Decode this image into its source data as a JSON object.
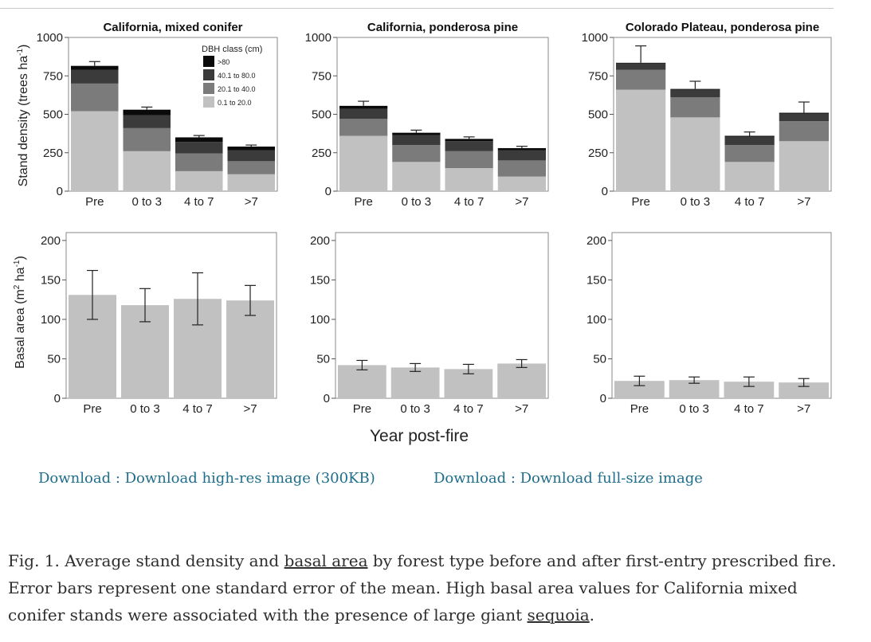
{
  "figure": {
    "xlabel": "Year post-fire",
    "ylabel_top": [
      "Stand density (trees ha",
      "-1",
      ")"
    ],
    "ylabel_bottom": [
      "Basal area (m",
      "2",
      " ha",
      "-1",
      ")"
    ],
    "legend_title": "DBH class (cm)",
    "legend_items": [
      {
        "label": ">80",
        "color": "#0a0a0a"
      },
      {
        "label": "40.1 to 80.0",
        "color": "#3b3b3b"
      },
      {
        "label": "20.1 to 40.0",
        "color": "#7b7b7b"
      },
      {
        "label": "0.1 to 20.0",
        "color": "#c1c1c1"
      }
    ]
  },
  "chart_data": [
    {
      "type": "bar",
      "title": "California, mixed conifer",
      "stacked": true,
      "categories": [
        "Pre",
        "0 to 3",
        "4 to 7",
        ">7"
      ],
      "ylim": [
        0,
        1000
      ],
      "yticks": [
        0,
        250,
        500,
        750,
        1000
      ],
      "series": [
        {
          "name": "0.1 to 20.0",
          "color": "#c1c1c1",
          "values": [
            520,
            260,
            130,
            110
          ]
        },
        {
          "name": "20.1 to 40.0",
          "color": "#7b7b7b",
          "values": [
            180,
            150,
            115,
            85
          ]
        },
        {
          "name": "40.1 to 80.0",
          "color": "#3b3b3b",
          "values": [
            90,
            85,
            75,
            70
          ]
        },
        {
          "name": ">80",
          "color": "#0a0a0a",
          "values": [
            25,
            35,
            30,
            25
          ]
        }
      ],
      "error": [
        28,
        17,
        12,
        10
      ]
    },
    {
      "type": "bar",
      "title": "California, ponderosa pine",
      "stacked": true,
      "categories": [
        "Pre",
        "0 to 3",
        "4 to 7",
        ">7"
      ],
      "ylim": [
        0,
        1000
      ],
      "yticks": [
        0,
        250,
        500,
        750,
        1000
      ],
      "series": [
        {
          "name": "0.1 to 20.0",
          "color": "#c1c1c1",
          "values": [
            360,
            190,
            150,
            95
          ]
        },
        {
          "name": "20.1 to 40.0",
          "color": "#7b7b7b",
          "values": [
            110,
            110,
            110,
            105
          ]
        },
        {
          "name": "40.1 to 80.0",
          "color": "#3b3b3b",
          "values": [
            65,
            65,
            65,
            65
          ]
        },
        {
          "name": ">80",
          "color": "#0a0a0a",
          "values": [
            20,
            15,
            15,
            15
          ]
        }
      ],
      "error": [
        30,
        17,
        13,
        12
      ]
    },
    {
      "type": "bar",
      "title": "Colorado Plateau, ponderosa pine",
      "stacked": true,
      "categories": [
        "Pre",
        "0 to 3",
        "4 to 7",
        ">7"
      ],
      "ylim": [
        0,
        1000
      ],
      "yticks": [
        0,
        250,
        500,
        750,
        1000
      ],
      "series": [
        {
          "name": "0.1 to 20.0",
          "color": "#c1c1c1",
          "values": [
            660,
            480,
            190,
            325
          ]
        },
        {
          "name": "20.1 to 40.0",
          "color": "#7b7b7b",
          "values": [
            130,
            130,
            110,
            130
          ]
        },
        {
          "name": "40.1 to 80.0",
          "color": "#3b3b3b",
          "values": [
            40,
            50,
            55,
            50
          ]
        },
        {
          "name": ">80",
          "color": "#0a0a0a",
          "values": [
            5,
            5,
            5,
            5
          ]
        }
      ],
      "error": [
        110,
        50,
        25,
        70
      ]
    },
    {
      "type": "bar",
      "title": "",
      "categories": [
        "Pre",
        "0 to 3",
        "4 to 7",
        ">7"
      ],
      "ylim": [
        0,
        210
      ],
      "yticks": [
        0,
        50,
        100,
        150,
        200
      ],
      "values": [
        131,
        118,
        126,
        124
      ],
      "error": [
        31,
        21,
        33,
        19
      ],
      "color": "#c1c1c1"
    },
    {
      "type": "bar",
      "title": "",
      "categories": [
        "Pre",
        "0 to 3",
        "4 to 7",
        ">7"
      ],
      "ylim": [
        0,
        210
      ],
      "yticks": [
        0,
        50,
        100,
        150,
        200
      ],
      "values": [
        42,
        39,
        37,
        44
      ],
      "error": [
        6,
        5,
        6,
        5
      ],
      "color": "#c1c1c1"
    },
    {
      "type": "bar",
      "title": "",
      "categories": [
        "Pre",
        "0 to 3",
        "4 to 7",
        ">7"
      ],
      "ylim": [
        0,
        210
      ],
      "yticks": [
        0,
        50,
        100,
        150,
        200
      ],
      "values": [
        22,
        23,
        21,
        20
      ],
      "error": [
        6,
        4,
        6,
        5
      ],
      "color": "#c1c1c1"
    }
  ],
  "downloads": [
    {
      "label": "Download : Download high-res image (300KB)"
    },
    {
      "label": "Download : Download full-size image"
    }
  ],
  "caption": {
    "p1": "Fig. 1. Average stand density and ",
    "link1": "basal area",
    "p2": " by forest type before and after first-entry prescribed fire. Error bars represent one standard error of the mean. High basal area values for California mixed conifer stands were associated with the presence of large giant ",
    "link2": "sequoia",
    "p3": "."
  }
}
